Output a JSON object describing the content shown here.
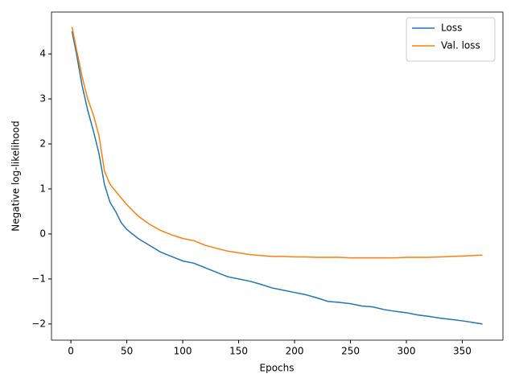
{
  "chart_data": {
    "type": "line",
    "xlabel": "Epochs",
    "ylabel": "Negative log-likelihood",
    "x": [
      1,
      5,
      10,
      15,
      20,
      25,
      30,
      35,
      40,
      45,
      50,
      60,
      70,
      80,
      90,
      100,
      110,
      120,
      130,
      140,
      150,
      160,
      170,
      180,
      190,
      200,
      210,
      220,
      230,
      240,
      250,
      260,
      270,
      280,
      290,
      300,
      310,
      320,
      330,
      340,
      350,
      360,
      368
    ],
    "series": [
      {
        "name": "Loss",
        "color": "#1f77b4",
        "values": [
          4.5,
          4.0,
          3.3,
          2.75,
          2.3,
          1.8,
          1.1,
          0.7,
          0.5,
          0.25,
          0.1,
          -0.1,
          -0.25,
          -0.4,
          -0.5,
          -0.6,
          -0.65,
          -0.75,
          -0.85,
          -0.95,
          -1.0,
          -1.05,
          -1.12,
          -1.2,
          -1.25,
          -1.3,
          -1.35,
          -1.42,
          -1.5,
          -1.52,
          -1.55,
          -1.6,
          -1.62,
          -1.68,
          -1.72,
          -1.75,
          -1.8,
          -1.83,
          -1.87,
          -1.9,
          -1.93,
          -1.97,
          -2.0
        ]
      },
      {
        "name": "Val. loss",
        "color": "#ff7f0e",
        "values": [
          4.6,
          4.1,
          3.5,
          3.0,
          2.65,
          2.2,
          1.4,
          1.1,
          0.95,
          0.8,
          0.65,
          0.4,
          0.22,
          0.08,
          -0.02,
          -0.1,
          -0.15,
          -0.25,
          -0.32,
          -0.38,
          -0.42,
          -0.46,
          -0.48,
          -0.5,
          -0.5,
          -0.51,
          -0.51,
          -0.52,
          -0.52,
          -0.52,
          -0.53,
          -0.53,
          -0.53,
          -0.53,
          -0.53,
          -0.52,
          -0.52,
          -0.52,
          -0.51,
          -0.5,
          -0.49,
          -0.48,
          -0.47
        ]
      }
    ],
    "xlim": [
      -17.35,
      386.35
    ],
    "ylim": [
      -2.36,
      4.93
    ],
    "xticks": [
      0,
      50,
      100,
      150,
      200,
      250,
      300,
      350
    ],
    "yticks": [
      {
        "value": -2,
        "label": "−2"
      },
      {
        "value": -1,
        "label": "−1"
      },
      0,
      1,
      2,
      3,
      4
    ],
    "grid": false,
    "legend": "upper right"
  }
}
